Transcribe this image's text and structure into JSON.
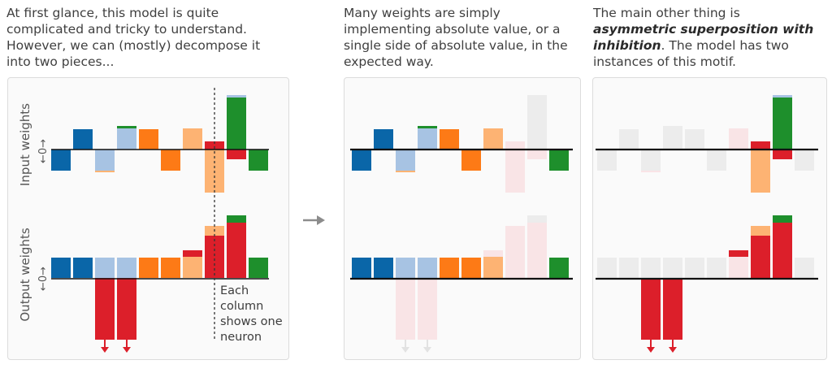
{
  "captions": {
    "left": [
      "At first glance, this model is quite",
      "complicated and tricky to understand.",
      "However, we can (mostly) decompose it",
      "into two pieces..."
    ],
    "middle": [
      "Many weights are simply",
      "implementing absolute value, or a",
      "single side of absolute value, in the",
      "expected way."
    ],
    "right": {
      "line1": "The main other thing is",
      "bold1": "asymmetric superposition with",
      "bold2": "inhibition",
      "line3_rest": ". The model has two",
      "line4": "instances of this motif."
    }
  },
  "axis_labels": {
    "input": "Input weights",
    "output": "Output weights",
    "zero_mark": "←0→"
  },
  "annotation": [
    "Each",
    "column",
    "shows one",
    "neuron"
  ],
  "colors": {
    "dark_blue": "#0a66a8",
    "light_blue": "#a7c3e3",
    "orange": "#fd7a16",
    "light_orange": "#fdb373",
    "red": "#dc1f2a",
    "green": "#1e8f2c",
    "ghost_gray": "#ececec",
    "ghost_pink": "#f9e4e6",
    "arrow_gray": "#8c8c8c"
  }
}
